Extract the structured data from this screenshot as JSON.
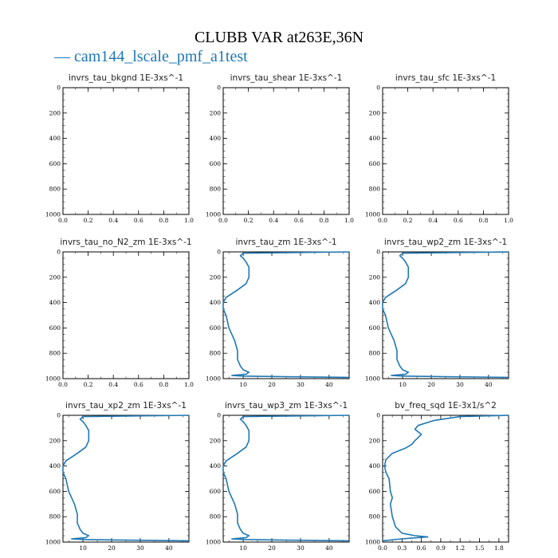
{
  "figure": {
    "title": "CLUBB VAR at263E,36N",
    "legend_label": "— cam144_lscale_pmf_a1test",
    "series_color": "#1f77b4"
  },
  "chart_data": [
    {
      "type": "line",
      "title": "invrs_tau_bkgnd   1E-3xs^-1",
      "xlim": [
        0,
        1
      ],
      "ylim": [
        1000,
        0
      ],
      "xticks": [
        "0.0",
        "0.2",
        "0.4",
        "0.6",
        "0.8",
        "1.0"
      ],
      "xtick_values": [
        0,
        0.2,
        0.4,
        0.6,
        0.8,
        1.0
      ],
      "yticks": [
        "0",
        "200",
        "400",
        "600",
        "800",
        "1000"
      ],
      "ytick_values": [
        0,
        200,
        400,
        600,
        800,
        1000
      ],
      "series": [
        {
          "x": [],
          "y": []
        }
      ]
    },
    {
      "type": "line",
      "title": "invrs_tau_shear   1E-3xs^-1",
      "xlim": [
        0,
        1
      ],
      "ylim": [
        1000,
        0
      ],
      "xticks": [
        "0.0",
        "0.2",
        "0.4",
        "0.6",
        "0.8",
        "1.0"
      ],
      "xtick_values": [
        0,
        0.2,
        0.4,
        0.6,
        0.8,
        1.0
      ],
      "yticks": [
        "0",
        "200",
        "400",
        "600",
        "800",
        "1000"
      ],
      "ytick_values": [
        0,
        200,
        400,
        600,
        800,
        1000
      ],
      "series": [
        {
          "x": [],
          "y": []
        }
      ]
    },
    {
      "type": "line",
      "title": "invrs_tau_sfc   1E-3xs^-1",
      "xlim": [
        0,
        1
      ],
      "ylim": [
        1000,
        0
      ],
      "xticks": [
        "0.0",
        "0.2",
        "0.4",
        "0.6",
        "0.8",
        "1.0"
      ],
      "xtick_values": [
        0,
        0.2,
        0.4,
        0.6,
        0.8,
        1.0
      ],
      "yticks": [
        "0",
        "200",
        "400",
        "600",
        "800",
        "1000"
      ],
      "ytick_values": [
        0,
        200,
        400,
        600,
        800,
        1000
      ],
      "series": [
        {
          "x": [],
          "y": []
        }
      ]
    },
    {
      "type": "line",
      "title": "invrs_tau_no_N2_zm   1E-3xs^-1",
      "xlim": [
        0,
        1
      ],
      "ylim": [
        1000,
        0
      ],
      "xticks": [
        "0.0",
        "0.2",
        "0.4",
        "0.6",
        "0.8",
        "1.0"
      ],
      "xtick_values": [
        0,
        0.2,
        0.4,
        0.6,
        0.8,
        1.0
      ],
      "yticks": [
        "0",
        "200",
        "400",
        "600",
        "800",
        "1000"
      ],
      "ytick_values": [
        0,
        200,
        400,
        600,
        800,
        1000
      ],
      "series": [
        {
          "x": [],
          "y": []
        }
      ]
    },
    {
      "type": "line",
      "title": "invrs_tau_zm   1E-3xs^-1",
      "xlim": [
        3,
        47
      ],
      "ylim": [
        1000,
        0
      ],
      "xticks": [
        "10",
        "20",
        "30",
        "40"
      ],
      "xtick_values": [
        10,
        20,
        30,
        40
      ],
      "yticks": [
        "0",
        "200",
        "400",
        "600",
        "800",
        "1000"
      ],
      "ytick_values": [
        0,
        200,
        400,
        600,
        800,
        1000
      ],
      "series": [
        {
          "x": [
            47,
            10,
            9,
            10,
            11,
            12,
            12,
            12,
            11,
            8,
            4,
            3,
            3,
            4,
            5,
            7,
            8,
            8,
            9,
            10,
            12,
            11,
            6,
            10,
            25,
            47
          ],
          "y": [
            0,
            10,
            30,
            50,
            80,
            120,
            160,
            200,
            250,
            300,
            360,
            400,
            450,
            500,
            600,
            700,
            780,
            850,
            900,
            930,
            950,
            965,
            975,
            980,
            985,
            990
          ]
        }
      ]
    },
    {
      "type": "line",
      "title": "invrs_tau_wp2_zm   1E-3xs^-1",
      "xlim": [
        3,
        47
      ],
      "ylim": [
        1000,
        0
      ],
      "xticks": [
        "10",
        "20",
        "30",
        "40"
      ],
      "xtick_values": [
        10,
        20,
        30,
        40
      ],
      "yticks": [
        "0",
        "200",
        "400",
        "600",
        "800",
        "1000"
      ],
      "ytick_values": [
        0,
        200,
        400,
        600,
        800,
        1000
      ],
      "series": [
        {
          "x": [
            47,
            10,
            9,
            10,
            11,
            12,
            12,
            12,
            11,
            8,
            4,
            3,
            3,
            4,
            5,
            7,
            8,
            8,
            9,
            10,
            12,
            11,
            6,
            10,
            25,
            47
          ],
          "y": [
            0,
            10,
            30,
            50,
            80,
            120,
            160,
            200,
            250,
            300,
            360,
            400,
            450,
            500,
            600,
            700,
            780,
            850,
            900,
            930,
            950,
            965,
            975,
            980,
            985,
            990
          ]
        }
      ]
    },
    {
      "type": "line",
      "title": "invrs_tau_xp2_zm   1E-3xs^-1",
      "xlim": [
        3,
        47
      ],
      "ylim": [
        1000,
        0
      ],
      "xticks": [
        "10",
        "20",
        "30",
        "40"
      ],
      "xtick_values": [
        10,
        20,
        30,
        40
      ],
      "yticks": [
        "0",
        "200",
        "400",
        "600",
        "800",
        "1000"
      ],
      "ytick_values": [
        0,
        200,
        400,
        600,
        800,
        1000
      ],
      "series": [
        {
          "x": [
            47,
            10,
            9,
            10,
            11,
            12,
            12,
            12,
            11,
            8,
            4,
            3,
            3,
            4,
            5,
            7,
            8,
            8,
            9,
            10,
            12,
            11,
            6,
            10,
            25,
            47
          ],
          "y": [
            0,
            10,
            30,
            50,
            80,
            120,
            160,
            200,
            250,
            300,
            360,
            400,
            450,
            500,
            600,
            700,
            780,
            850,
            900,
            930,
            950,
            965,
            975,
            980,
            985,
            990
          ]
        }
      ]
    },
    {
      "type": "line",
      "title": "invrs_tau_wp3_zm   1E-3xs^-1",
      "xlim": [
        3,
        47
      ],
      "ylim": [
        1000,
        0
      ],
      "xticks": [
        "10",
        "20",
        "30",
        "40"
      ],
      "xtick_values": [
        10,
        20,
        30,
        40
      ],
      "yticks": [
        "0",
        "200",
        "400",
        "600",
        "800",
        "1000"
      ],
      "ytick_values": [
        0,
        200,
        400,
        600,
        800,
        1000
      ],
      "series": [
        {
          "x": [
            47,
            10,
            9,
            10,
            11,
            12,
            12,
            12,
            11,
            8,
            4,
            3,
            3,
            4,
            5,
            7,
            8,
            8,
            9,
            10,
            12,
            11,
            6,
            10,
            25,
            47
          ],
          "y": [
            0,
            10,
            30,
            50,
            80,
            120,
            160,
            200,
            250,
            300,
            360,
            400,
            450,
            500,
            600,
            700,
            780,
            850,
            900,
            930,
            950,
            965,
            975,
            980,
            985,
            990
          ]
        }
      ]
    },
    {
      "type": "line",
      "title": "bv_freq_sqd   1E-3x1/s^2",
      "xlim": [
        0,
        1.95
      ],
      "ylim": [
        1000,
        0
      ],
      "xticks": [
        "0.0",
        "0.3",
        "0.6",
        "0.9",
        "1.2",
        "1.5",
        "1.8"
      ],
      "xtick_values": [
        0,
        0.3,
        0.6,
        0.9,
        1.2,
        1.5,
        1.8
      ],
      "yticks": [
        "0",
        "200",
        "400",
        "600",
        "800",
        "1000"
      ],
      "ytick_values": [
        0,
        200,
        400,
        600,
        800,
        1000
      ],
      "series": [
        {
          "x": [
            1.95,
            1.2,
            0.8,
            0.55,
            0.5,
            0.6,
            0.5,
            0.45,
            0.35,
            0.15,
            0.05,
            0.03,
            0.05,
            0.1,
            0.12,
            0.15,
            0.12,
            0.15,
            0.2,
            0.3,
            0.5,
            0.7,
            0.3,
            0.0
          ],
          "y": [
            0,
            10,
            40,
            80,
            110,
            150,
            200,
            230,
            260,
            300,
            350,
            400,
            450,
            500,
            600,
            650,
            700,
            800,
            880,
            930,
            950,
            960,
            975,
            990
          ]
        }
      ]
    }
  ]
}
